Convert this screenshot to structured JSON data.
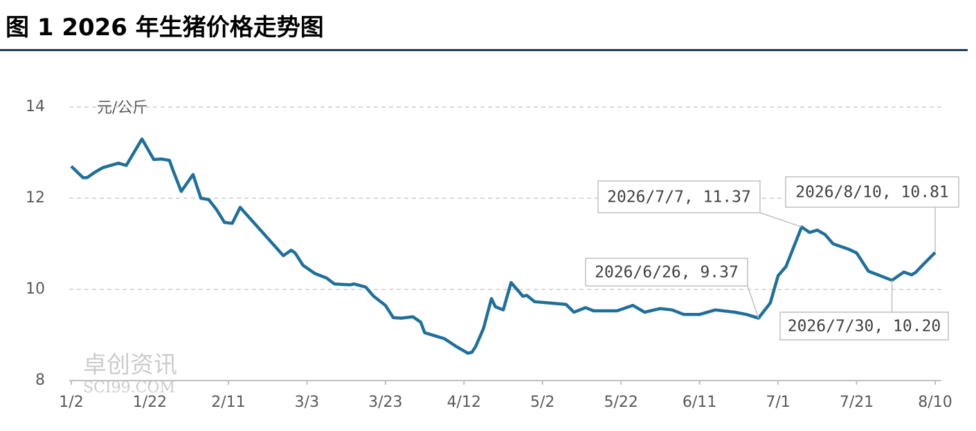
{
  "chart_data": {
    "type": "line",
    "title": "图 1  2026 年生猪价格走势图",
    "y_label": "元/公斤",
    "watermark": [
      "卓创资讯",
      "SCI99.COM"
    ],
    "x": [
      "2026-01-02",
      "2026-01-05",
      "2026-01-06",
      "2026-01-08",
      "2026-01-10",
      "2026-01-14",
      "2026-01-16",
      "2026-01-20",
      "2026-01-23",
      "2026-01-25",
      "2026-01-27",
      "2026-01-28",
      "2026-01-30",
      "2026-02-02",
      "2026-02-04",
      "2026-02-06",
      "2026-02-08",
      "2026-02-10",
      "2026-02-12",
      "2026-02-14",
      "2026-02-25",
      "2026-02-27",
      "2026-02-28",
      "2026-03-02",
      "2026-03-03",
      "2026-03-05",
      "2026-03-08",
      "2026-03-10",
      "2026-03-14",
      "2026-03-15",
      "2026-03-18",
      "2026-03-20",
      "2026-03-23",
      "2026-03-25",
      "2026-03-27",
      "2026-03-30",
      "2026-04-01",
      "2026-04-02",
      "2026-04-07",
      "2026-04-10",
      "2026-04-13",
      "2026-04-14",
      "2026-04-15",
      "2026-04-17",
      "2026-04-19",
      "2026-04-20",
      "2026-04-22",
      "2026-04-24",
      "2026-04-27",
      "2026-04-28",
      "2026-04-30",
      "2026-05-04",
      "2026-05-08",
      "2026-05-10",
      "2026-05-13",
      "2026-05-15",
      "2026-05-21",
      "2026-05-25",
      "2026-05-28",
      "2026-06-01",
      "2026-06-04",
      "2026-06-07",
      "2026-06-11",
      "2026-06-15",
      "2026-06-20",
      "2026-06-23",
      "2026-06-26",
      "2026-06-29",
      "2026-07-01",
      "2026-07-03",
      "2026-07-07",
      "2026-07-09",
      "2026-07-11",
      "2026-07-13",
      "2026-07-15",
      "2026-07-19",
      "2026-07-21",
      "2026-07-24",
      "2026-07-27",
      "2026-07-30",
      "2026-08-02",
      "2026-08-04",
      "2026-08-05",
      "2026-08-07",
      "2026-08-10"
    ],
    "series": [
      {
        "color": "#1f6f9c",
        "values": [
          12.7,
          12.45,
          12.45,
          12.57,
          12.67,
          12.77,
          12.72,
          13.3,
          12.85,
          12.86,
          12.83,
          12.59,
          12.15,
          12.52,
          12.0,
          11.97,
          11.75,
          11.47,
          11.45,
          11.8,
          10.74,
          10.86,
          10.8,
          10.53,
          10.47,
          10.35,
          10.25,
          10.12,
          10.1,
          10.12,
          10.05,
          9.85,
          9.65,
          9.38,
          9.37,
          9.4,
          9.28,
          9.05,
          8.92,
          8.75,
          8.6,
          8.62,
          8.75,
          9.15,
          9.8,
          9.62,
          9.55,
          10.15,
          9.85,
          9.87,
          9.73,
          9.7,
          9.67,
          9.5,
          9.6,
          9.53,
          9.53,
          9.65,
          9.5,
          9.58,
          9.55,
          9.45,
          9.45,
          9.55,
          9.5,
          9.45,
          9.37,
          9.7,
          10.3,
          10.5,
          11.37,
          11.25,
          11.3,
          11.2,
          11.0,
          10.88,
          10.8,
          10.4,
          10.3,
          10.2,
          10.38,
          10.32,
          10.37,
          10.55,
          10.81
        ]
      }
    ],
    "xlim": [
      "2026-01-02",
      "2026-08-10"
    ],
    "xticks": [
      {
        "value": "2026-01-02",
        "label": "1/2"
      },
      {
        "value": "2026-01-22",
        "label": "1/22"
      },
      {
        "value": "2026-02-11",
        "label": "2/11"
      },
      {
        "value": "2026-03-03",
        "label": "3/3"
      },
      {
        "value": "2026-03-23",
        "label": "3/23"
      },
      {
        "value": "2026-04-12",
        "label": "4/12"
      },
      {
        "value": "2026-05-02",
        "label": "5/2"
      },
      {
        "value": "2026-05-22",
        "label": "5/22"
      },
      {
        "value": "2026-06-11",
        "label": "6/11"
      },
      {
        "value": "2026-07-01",
        "label": "7/1"
      },
      {
        "value": "2026-07-21",
        "label": "7/21"
      },
      {
        "value": "2026-08-10",
        "label": "8/10"
      }
    ],
    "ylim": [
      8,
      14
    ],
    "yticks": [
      8,
      10,
      12,
      14
    ],
    "grid": true,
    "annotations": [
      {
        "text": "2026/7/7, 11.37",
        "x": "2026-07-07",
        "y": 11.37
      },
      {
        "text": "2026/8/10, 10.81",
        "x": "2026-08-10",
        "y": 10.81
      },
      {
        "text": "2026/6/26, 9.37",
        "x": "2026-06-26",
        "y": 9.37
      },
      {
        "text": "2026/7/30, 10.20",
        "x": "2026-07-30",
        "y": 10.2
      }
    ]
  }
}
